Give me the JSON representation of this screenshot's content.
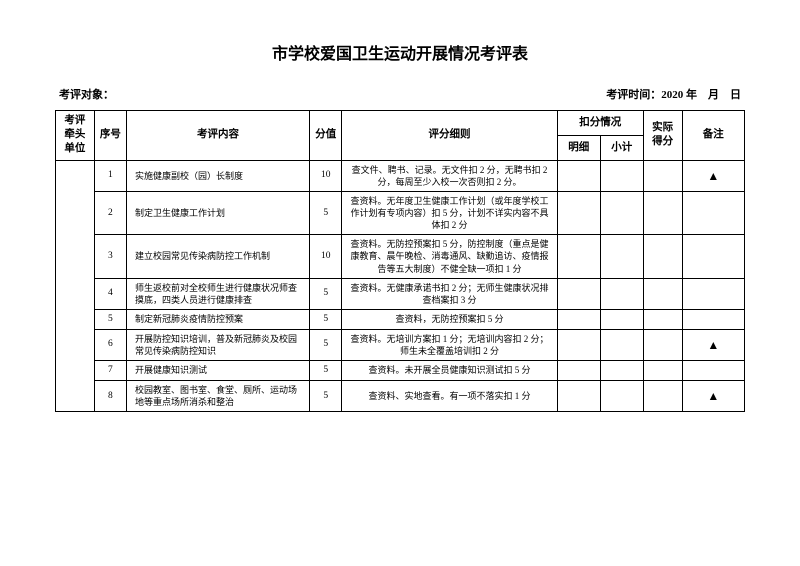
{
  "title": "市学校爱国卫生运动开展情况考评表",
  "subheader": {
    "left_label": "考评对象：",
    "right_label": "考评时间：2020 年 月 日"
  },
  "headers": {
    "unit": "考评牵头单位",
    "seq": "序号",
    "content": "考评内容",
    "score": "分值",
    "rule": "评分细则",
    "deduct": "扣分情况",
    "detail": "明细",
    "subtotal": "小计",
    "actual": "实际得分",
    "remark": "备注"
  },
  "rows": [
    {
      "seq": "1",
      "content": "实施健康副校（园）长制度",
      "score": "10",
      "rule": "查文件、聘书、记录。无文件扣 2 分，无聘书扣 2 分，每周至少入校一次否则扣 2 分。",
      "remark": "▲"
    },
    {
      "seq": "2",
      "content": "制定卫生健康工作计划",
      "score": "5",
      "rule": "查资料。无年度卫生健康工作计划（或年度学校工作计划有专项内容）扣 5 分，计划不详实内容不具体扣 2 分",
      "remark": ""
    },
    {
      "seq": "3",
      "content": "建立校园常见传染病防控工作机制",
      "score": "10",
      "rule": "查资料。无防控预案扣 5 分，防控制度（重点是健康教育、晨午晚检、消毒通风、缺勤追访、疫情报告等五大制度）不健全缺一项扣 1 分",
      "remark": ""
    },
    {
      "seq": "4",
      "content": "师生返校前对全校师生进行健康状况师查摸底，四类人员进行健康排查",
      "score": "5",
      "rule": "查资料。无健康承诺书扣 2 分；无师生健康状况排查档案扣 3 分",
      "remark": ""
    },
    {
      "seq": "5",
      "content": "制定新冠肺炎疫情防控预案",
      "score": "5",
      "rule": "查资料，无防控预案扣 5 分",
      "remark": ""
    },
    {
      "seq": "6",
      "content": "开展防控知识培训，普及新冠肺炎及校园常见传染病防控知识",
      "score": "5",
      "rule": "查资料。无培训方案扣 1 分；无培训内容扣 2 分；师生未全覆盖培训扣 2 分",
      "remark": "▲"
    },
    {
      "seq": "7",
      "content": "开展健康知识测试",
      "score": "5",
      "rule": "查资料。未开展全员健康知识测试扣 5 分",
      "remark": ""
    },
    {
      "seq": "8",
      "content": "校园教室、图书室、食堂、厕所、运动场地等重点场所消杀和整治",
      "score": "5",
      "rule": "查资料、实地查看。有一项不落实扣 1 分",
      "remark": "▲"
    }
  ]
}
